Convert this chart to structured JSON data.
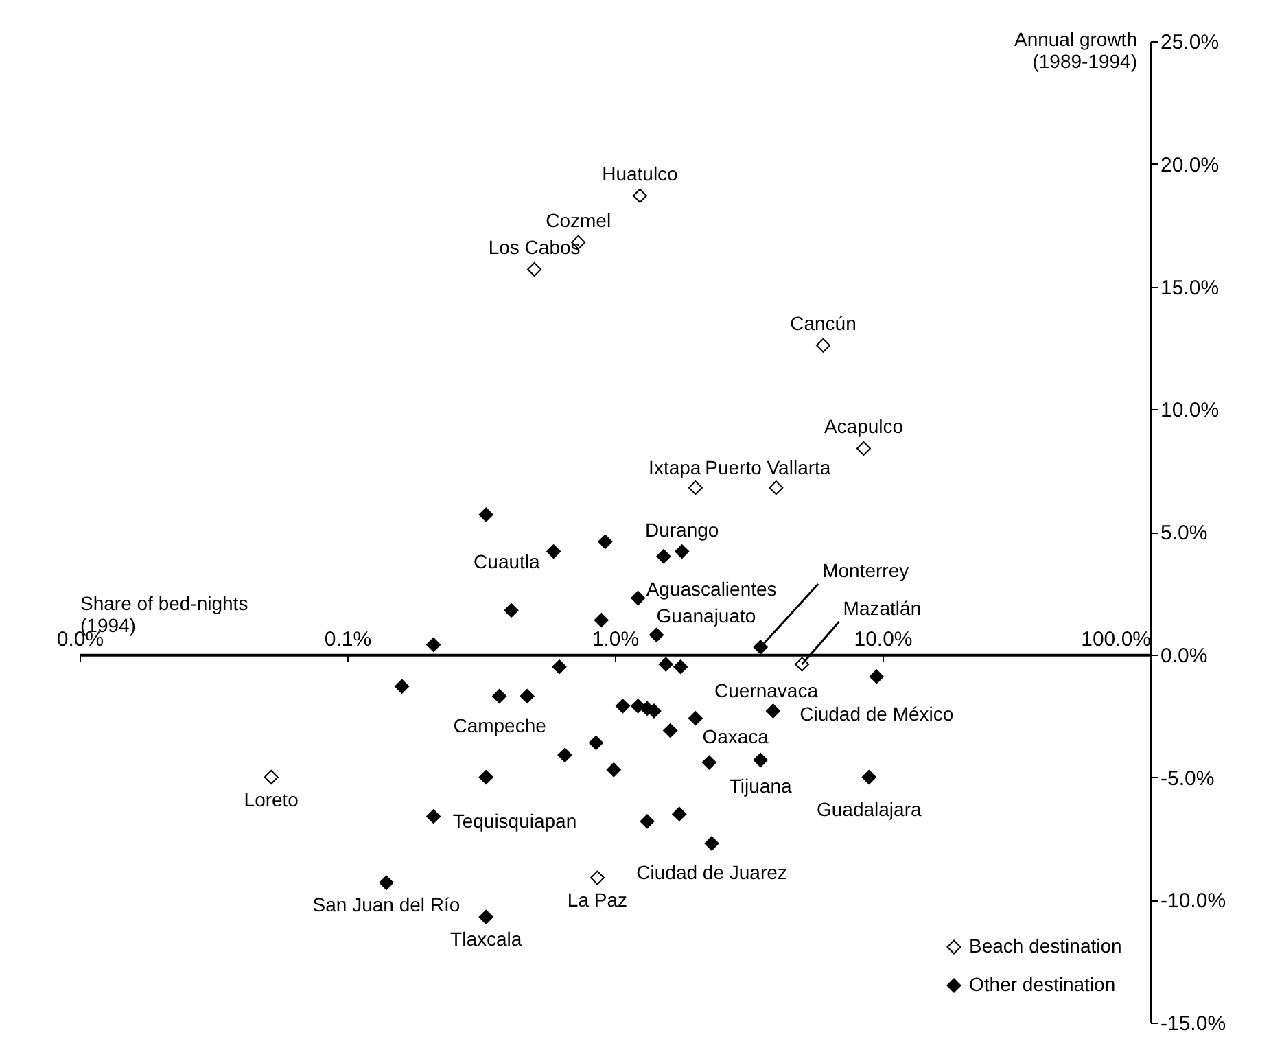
{
  "chart_data": {
    "type": "scatter",
    "xlabel": "Share of bed-nights\n(1994)",
    "ylabel": "Annual growth\n(1989-1994)",
    "log": "x",
    "marker": "diamond",
    "legend": "bottom right",
    "grid": false,
    "xlim": [
      0.01,
      100
    ],
    "xticks": [
      {
        "value": 0.01,
        "label": "0.0%"
      },
      {
        "value": 0.1,
        "label": "0.1%"
      },
      {
        "value": 1,
        "label": "1.0%"
      },
      {
        "value": 10,
        "label": "10.0%"
      },
      {
        "value": 100,
        "label": "100.0%"
      }
    ],
    "ylim": [
      -15,
      25
    ],
    "yticks": [
      {
        "value": -15,
        "label": "-15.0%"
      },
      {
        "value": -10,
        "label": "-10.0%"
      },
      {
        "value": -5,
        "label": "-5.0%"
      },
      {
        "value": 0,
        "label": "0.0%"
      },
      {
        "value": 5,
        "label": "5.0%"
      },
      {
        "value": 10,
        "label": "10.0%"
      },
      {
        "value": 15,
        "label": "15.0%"
      },
      {
        "value": 20,
        "label": "20.0%"
      },
      {
        "value": 25,
        "label": "25.0%"
      }
    ],
    "series": [
      {
        "name": "Beach destination",
        "color": "#ffffff",
        "x": [
          1.24,
          0.73,
          0.5,
          6.0,
          8.5,
          2.0,
          4.0,
          5.0,
          0.052,
          0.86
        ],
        "values": [
          18.7,
          16.8,
          15.7,
          12.6,
          8.4,
          6.8,
          6.8,
          -0.4,
          -5.0,
          -9.1
        ]
      },
      {
        "name": "Other destination",
        "color": "#000000",
        "x": [
          0.33,
          0.59,
          0.92,
          1.52,
          1.78,
          1.22,
          0.41,
          0.89,
          1.43,
          0.21,
          3.5,
          0.16,
          0.62,
          1.55,
          1.76,
          0.37,
          0.47,
          1.07,
          1.22,
          1.32,
          1.4,
          2.0,
          1.61,
          0.85,
          0.65,
          0.99,
          2.25,
          3.5,
          3.9,
          9.5,
          8.9,
          0.33,
          0.21,
          1.32,
          1.74,
          2.3,
          0.14,
          0.33
        ],
        "values": [
          5.7,
          4.2,
          4.6,
          4.0,
          4.2,
          2.3,
          1.8,
          1.4,
          0.8,
          0.4,
          0.3,
          -1.3,
          -0.5,
          -0.4,
          -0.5,
          -1.7,
          -1.7,
          -2.1,
          -2.1,
          -2.2,
          -2.3,
          -2.6,
          -3.1,
          -3.6,
          -4.1,
          -4.7,
          -4.4,
          -4.3,
          -2.3,
          -0.9,
          -5.0,
          -5.0,
          -6.6,
          -6.8,
          -6.5,
          -7.7,
          -9.3,
          -10.7
        ]
      }
    ],
    "annotations": [
      {
        "text": "Huatulco",
        "x": 1.24,
        "y": 18.7
      },
      {
        "text": "Cozmel",
        "x": 0.73,
        "y": 16.8
      },
      {
        "text": "Los Cabos",
        "x": 0.5,
        "y": 15.7
      },
      {
        "text": "Cancún",
        "x": 6.0,
        "y": 12.6
      },
      {
        "text": "Acapulco",
        "x": 8.5,
        "y": 8.4
      },
      {
        "text": "Ixtapa",
        "x": 2.0,
        "y": 6.8
      },
      {
        "text": "Puerto Vallarta",
        "x": 4.0,
        "y": 6.8
      },
      {
        "text": "Durango",
        "x": 1.78,
        "y": 4.2
      },
      {
        "text": "Cuautla",
        "x": 0.59,
        "y": 4.2
      },
      {
        "text": "Monterrey",
        "x": 3.5,
        "y": 0.3
      },
      {
        "text": "Mazatlán",
        "x": 5.0,
        "y": -0.4
      },
      {
        "text": "Aguascalientes",
        "x": 1.22,
        "y": 2.3
      },
      {
        "text": "Guanajuato",
        "x": 1.43,
        "y": 0.8
      },
      {
        "text": "Cuernavaca",
        "x": 3.9,
        "y": -2.3
      },
      {
        "text": "Oaxaca",
        "x": 2.0,
        "y": -2.6
      },
      {
        "text": "Tijuana",
        "x": 3.5,
        "y": -4.3
      },
      {
        "text": "Ciudad de México",
        "x": 9.5,
        "y": -0.9
      },
      {
        "text": "Guadalajara",
        "x": 8.9,
        "y": -5.0
      },
      {
        "text": "Ciudad de Juarez",
        "x": 2.3,
        "y": -7.7
      },
      {
        "text": "Campeche",
        "x": 0.47,
        "y": -1.7
      },
      {
        "text": "Loreto",
        "x": 0.052,
        "y": -5.0
      },
      {
        "text": "Tequisquiapan",
        "x": 0.21,
        "y": -6.6
      },
      {
        "text": "San Juan del Río",
        "x": 0.14,
        "y": -9.3
      },
      {
        "text": "Tlaxcala",
        "x": 0.33,
        "y": -10.7
      },
      {
        "text": "La Paz",
        "x": 0.86,
        "y": -9.1
      }
    ]
  }
}
